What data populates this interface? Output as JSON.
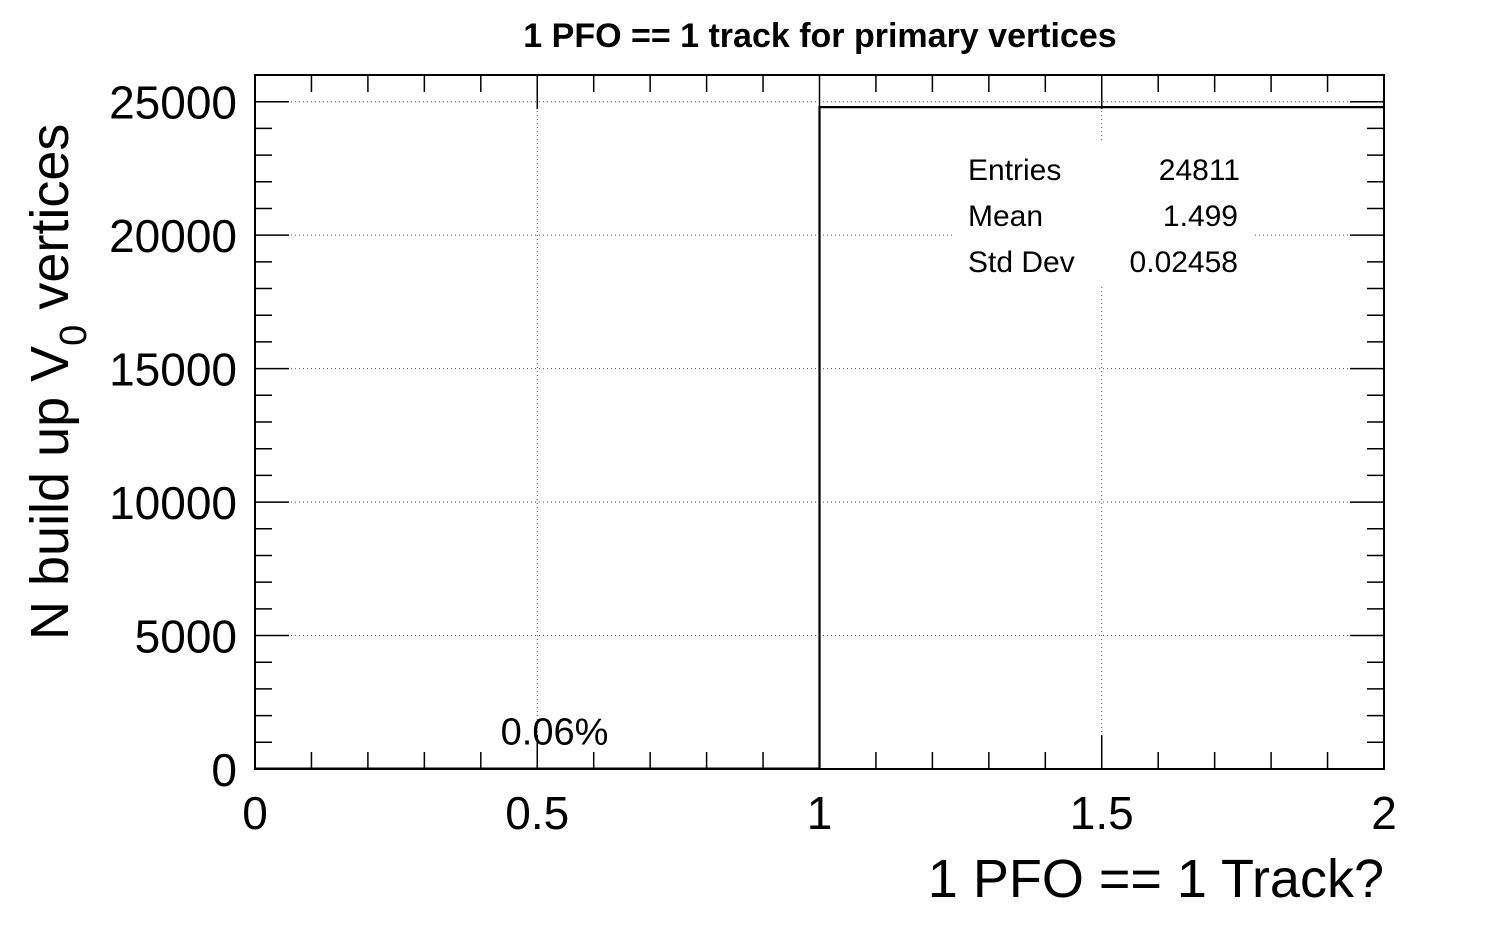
{
  "chart_data": {
    "type": "bar",
    "title": "1 PFO == 1 track for primary vertices",
    "xlabel": "1 PFO == 1 Track?",
    "ylabel": {
      "main": "N build up V",
      "subscript": "0",
      "suffix": " vertices"
    },
    "xlim": [
      0,
      2
    ],
    "ylim": [
      0,
      26000
    ],
    "x_ticks": [
      {
        "value": 0,
        "label": "0"
      },
      {
        "value": 0.5,
        "label": "0.5"
      },
      {
        "value": 1,
        "label": "1"
      },
      {
        "value": 1.5,
        "label": "1.5"
      },
      {
        "value": 2,
        "label": "2"
      }
    ],
    "y_ticks": [
      {
        "value": 0,
        "label": "0"
      },
      {
        "value": 5000,
        "label": "5000"
      },
      {
        "value": 10000,
        "label": "10000"
      },
      {
        "value": 15000,
        "label": "15000"
      },
      {
        "value": 20000,
        "label": "20000"
      },
      {
        "value": 25000,
        "label": "25000"
      }
    ],
    "bins": [
      {
        "low": 0,
        "high": 1,
        "value": 15
      },
      {
        "low": 1,
        "high": 2,
        "value": 24796
      }
    ],
    "annotations": [
      {
        "text": "0.06%",
        "x": 0.52,
        "y": 1300
      }
    ],
    "stats": {
      "rows": [
        {
          "label": "Entries",
          "value": "24811"
        },
        {
          "label": "Mean",
          "value": "1.499"
        },
        {
          "label": "Std Dev",
          "value": "0.02458"
        }
      ]
    },
    "grid": true,
    "line_color": "#000000"
  }
}
